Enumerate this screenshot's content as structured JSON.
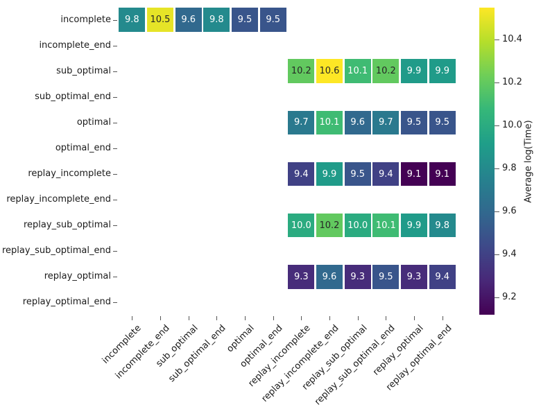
{
  "chart_data": {
    "type": "heatmap",
    "colorbar_label": "Average log(Time)",
    "x_categories": [
      "incomplete",
      "incomplete_end",
      "sub_optimal",
      "sub_optimal_end",
      "optimal",
      "optimal_end",
      "replay_incomplete",
      "replay_incomplete_end",
      "replay_sub_optimal",
      "replay_sub_optimal_end",
      "replay_optimal",
      "replay_optimal_end"
    ],
    "y_categories": [
      "incomplete",
      "incomplete_end",
      "sub_optimal",
      "sub_optimal_end",
      "optimal",
      "optimal_end",
      "replay_incomplete",
      "replay_incomplete_end",
      "replay_sub_optimal",
      "replay_sub_optimal_end",
      "replay_optimal",
      "replay_optimal_end"
    ],
    "matrix": [
      [
        9.8,
        10.5,
        9.6,
        9.8,
        9.5,
        9.5,
        null,
        null,
        null,
        null,
        null,
        null
      ],
      [
        null,
        null,
        null,
        null,
        null,
        null,
        null,
        null,
        null,
        null,
        null,
        null
      ],
      [
        null,
        null,
        null,
        null,
        null,
        null,
        10.2,
        10.6,
        10.1,
        10.2,
        9.9,
        9.9
      ],
      [
        null,
        null,
        null,
        null,
        null,
        null,
        null,
        null,
        null,
        null,
        null,
        null
      ],
      [
        null,
        null,
        null,
        null,
        null,
        null,
        9.7,
        10.1,
        9.6,
        9.7,
        9.5,
        9.5
      ],
      [
        null,
        null,
        null,
        null,
        null,
        null,
        null,
        null,
        null,
        null,
        null,
        null
      ],
      [
        null,
        null,
        null,
        null,
        null,
        null,
        9.4,
        9.9,
        9.5,
        9.4,
        9.1,
        9.1
      ],
      [
        null,
        null,
        null,
        null,
        null,
        null,
        null,
        null,
        null,
        null,
        null,
        null
      ],
      [
        null,
        null,
        null,
        null,
        null,
        null,
        10.0,
        10.2,
        10.0,
        10.1,
        9.9,
        9.8
      ],
      [
        null,
        null,
        null,
        null,
        null,
        null,
        null,
        null,
        null,
        null,
        null,
        null
      ],
      [
        null,
        null,
        null,
        null,
        null,
        null,
        9.3,
        9.6,
        9.3,
        9.5,
        9.3,
        9.4
      ],
      [
        null,
        null,
        null,
        null,
        null,
        null,
        null,
        null,
        null,
        null,
        null,
        null
      ]
    ],
    "vmin": 9.12,
    "vmax": 10.55,
    "colorbar_ticks": [
      10.4,
      10.2,
      10.0,
      9.8,
      9.6,
      9.4,
      9.2
    ],
    "value_format_decimals": 1,
    "colormap": {
      "name": "viridis",
      "stops": [
        "#440154",
        "#482878",
        "#3e4989",
        "#31688e",
        "#26828e",
        "#1f9e89",
        "#35b779",
        "#6ece58",
        "#b5de2b",
        "#fde725"
      ]
    },
    "annotation_text_dark": "#262626",
    "annotation_text_light": "#ffffff",
    "grid": false,
    "legend_position": "right-colorbar"
  }
}
